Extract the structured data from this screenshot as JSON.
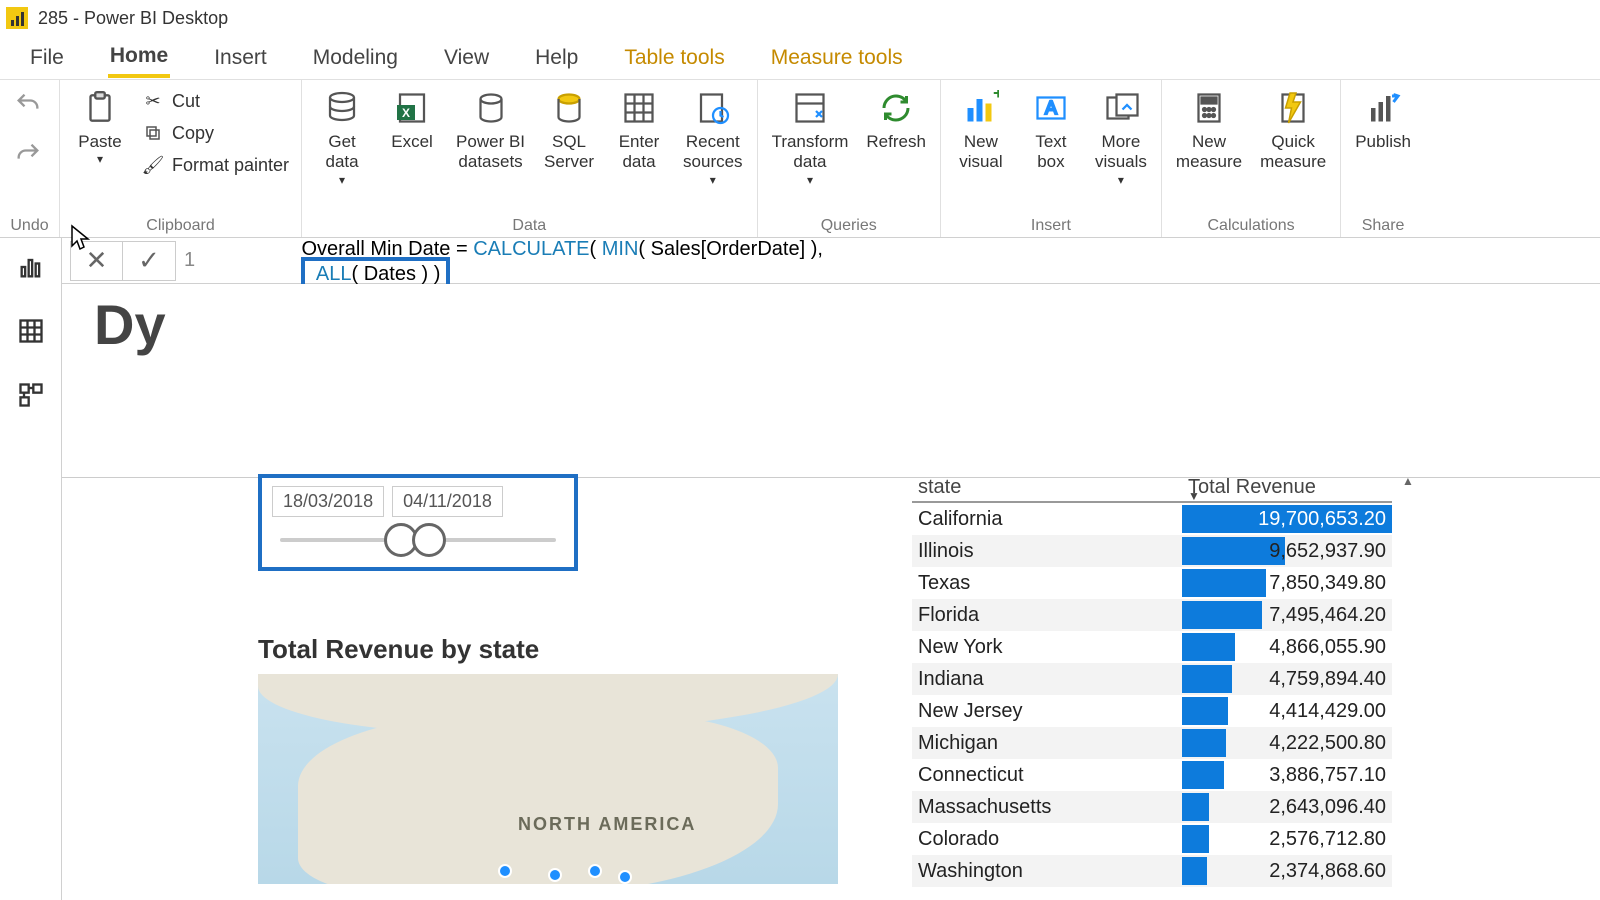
{
  "titlebar": {
    "title": "285 - Power BI Desktop"
  },
  "menu": {
    "file": "File",
    "home": "Home",
    "insert": "Insert",
    "modeling": "Modeling",
    "view": "View",
    "help": "Help",
    "tabletools": "Table tools",
    "measuretools": "Measure tools"
  },
  "ribbon": {
    "undo_label": "Undo",
    "paste": "Paste",
    "cut": "Cut",
    "copy": "Copy",
    "formatpainter": "Format painter",
    "clipboard_label": "Clipboard",
    "getdata": "Get\ndata",
    "excel": "Excel",
    "pbids": "Power BI\ndatasets",
    "sql": "SQL\nServer",
    "enterdata": "Enter\ndata",
    "recent": "Recent\nsources",
    "data_label": "Data",
    "transform": "Transform\ndata",
    "refresh": "Refresh",
    "queries_label": "Queries",
    "newvisual": "New\nvisual",
    "textbox": "Text\nbox",
    "morevisuals": "More\nvisuals",
    "insert_label": "Insert",
    "newmeasure": "New\nmeasure",
    "quickmeasure": "Quick\nmeasure",
    "calc_label": "Calculations",
    "publish": "Publish",
    "share_label": "Share"
  },
  "formula": {
    "line": "1",
    "pre": "Overall Min Date = ",
    "calc": "CALCULATE",
    "open1": "( ",
    "min": "MIN",
    "args1": "( Sales[OrderDate] ),",
    "all": " ALL",
    "args2": "( Dates ) ",
    "close": ")"
  },
  "page": {
    "title_fragment": "Dy"
  },
  "slicer": {
    "start": "18/03/2018",
    "end": "04/11/2018"
  },
  "map": {
    "title": "Total Revenue by state",
    "label": "NORTH AMERICA"
  },
  "table": {
    "col1": "state",
    "col2": "Total Revenue",
    "max_value": 19700653.2,
    "rows": [
      {
        "state": "California",
        "value": "19,700,653.20",
        "pct": 100,
        "hl": true
      },
      {
        "state": "Illinois",
        "value": "9,652,937.90",
        "pct": 49
      },
      {
        "state": "Texas",
        "value": "7,850,349.80",
        "pct": 40
      },
      {
        "state": "Florida",
        "value": "7,495,464.20",
        "pct": 38
      },
      {
        "state": "New York",
        "value": "4,866,055.90",
        "pct": 25
      },
      {
        "state": "Indiana",
        "value": "4,759,894.40",
        "pct": 24
      },
      {
        "state": "New Jersey",
        "value": "4,414,429.00",
        "pct": 22
      },
      {
        "state": "Michigan",
        "value": "4,222,500.80",
        "pct": 21
      },
      {
        "state": "Connecticut",
        "value": "3,886,757.10",
        "pct": 20
      },
      {
        "state": "Massachusetts",
        "value": "2,643,096.40",
        "pct": 13
      },
      {
        "state": "Colorado",
        "value": "2,576,712.80",
        "pct": 13
      },
      {
        "state": "Washington",
        "value": "2,374,868.60",
        "pct": 12
      }
    ]
  },
  "colors": {
    "accent": "#f2c811",
    "highlight_border": "#1f6fc4",
    "bar": "#0d7bdc"
  }
}
